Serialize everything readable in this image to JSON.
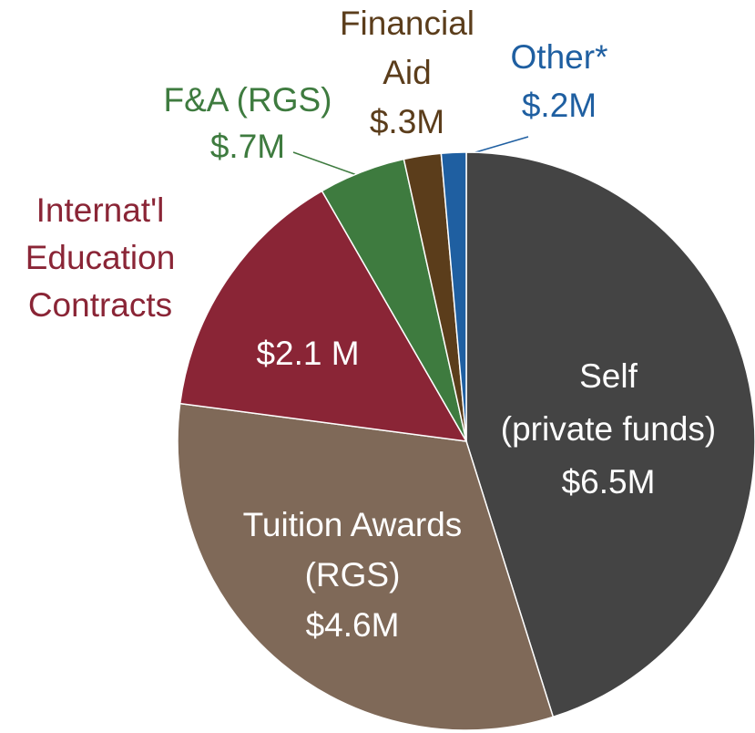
{
  "chart_data": {
    "type": "pie",
    "categories": [
      [
        "Self",
        "(private funds)"
      ],
      [
        "Tuition Awards",
        "(RGS)"
      ],
      [
        "Internat'l",
        "Education",
        "Contracts"
      ],
      [
        "F&A (RGS)"
      ],
      [
        "Financial",
        "Aid"
      ],
      [
        "Other*"
      ]
    ],
    "values": [
      6.5,
      4.6,
      2.1,
      0.7,
      0.3,
      0.2
    ],
    "value_labels": [
      "$6.5M",
      "$4.6M",
      "$2.1 M",
      "$.7M",
      "$.3M",
      "$.2M"
    ],
    "colors": [
      "#444444",
      "#7f6958",
      "#8a2536",
      "#3e7b3f",
      "#5b3d1b",
      "#1f5fa1"
    ]
  }
}
